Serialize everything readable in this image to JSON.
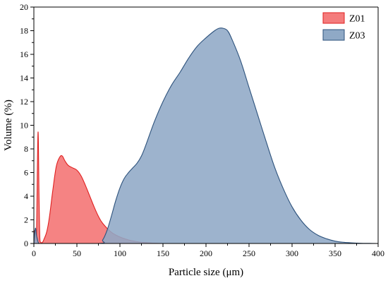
{
  "chart_data": {
    "type": "area",
    "title": "",
    "xlabel": "Particle size (μm)",
    "ylabel": "Volume (%)",
    "xlim": [
      0,
      400
    ],
    "ylim": [
      0,
      20
    ],
    "xticks": [
      "0",
      "50",
      "100",
      "150",
      "200",
      "250",
      "300",
      "350",
      "400"
    ],
    "yticks": [
      "0",
      "2",
      "4",
      "6",
      "8",
      "10",
      "12",
      "14",
      "16",
      "18",
      "20"
    ],
    "grid": false,
    "legend_position": "top-right",
    "series": [
      {
        "name": "Z01",
        "fill_color": "#f47c7c",
        "line_color": "#e02020",
        "x": [
          0,
          1,
          2,
          3,
          4,
          5,
          6,
          7,
          8,
          10,
          12,
          15,
          18,
          22,
          26,
          30,
          33,
          36,
          40,
          45,
          50,
          55,
          60,
          65,
          70,
          75,
          80,
          90,
          100,
          110,
          120,
          130,
          140,
          150
        ],
        "y": [
          0,
          1.1,
          0.5,
          0.3,
          6.0,
          9.4,
          4.0,
          0.4,
          0.1,
          0.1,
          0.4,
          1.0,
          2.2,
          4.5,
          6.5,
          7.3,
          7.4,
          7.0,
          6.6,
          6.4,
          6.2,
          5.7,
          4.9,
          4.0,
          3.1,
          2.3,
          1.7,
          0.95,
          0.55,
          0.3,
          0.15,
          0.07,
          0.03,
          0
        ]
      },
      {
        "name": "Z03",
        "fill_color": "#8fa9c6",
        "line_color": "#2d527c",
        "x": [
          0,
          1,
          2,
          3,
          4,
          5,
          6,
          8,
          75,
          80,
          85,
          90,
          95,
          100,
          105,
          110,
          115,
          120,
          125,
          130,
          140,
          150,
          160,
          170,
          180,
          190,
          200,
          210,
          215,
          220,
          225,
          230,
          240,
          250,
          260,
          270,
          280,
          290,
          300,
          310,
          320,
          330,
          340,
          350,
          360,
          370,
          380,
          390,
          400
        ],
        "y": [
          0,
          0.9,
          1.3,
          0.7,
          0.4,
          0.1,
          0,
          0,
          0,
          0.3,
          1.1,
          2.3,
          3.6,
          4.7,
          5.5,
          6.0,
          6.4,
          6.8,
          7.4,
          8.3,
          10.3,
          12.0,
          13.4,
          14.5,
          15.7,
          16.7,
          17.4,
          18.0,
          18.2,
          18.2,
          18.0,
          17.3,
          15.5,
          13.2,
          10.9,
          8.6,
          6.4,
          4.6,
          3.1,
          2.0,
          1.2,
          0.7,
          0.4,
          0.2,
          0.1,
          0.05,
          0.02,
          0.01,
          0
        ]
      }
    ]
  }
}
